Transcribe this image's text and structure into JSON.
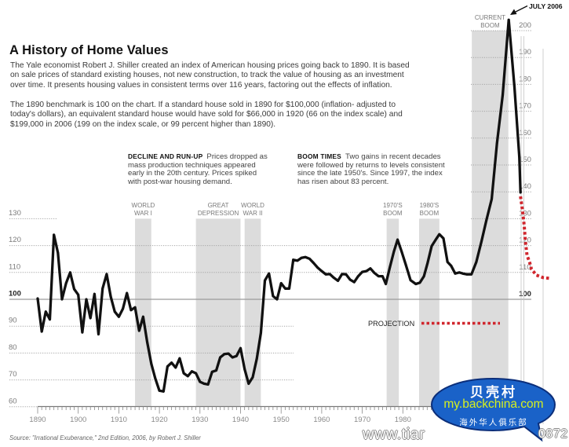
{
  "header": {
    "title": "A History of Home Values",
    "paragraphs": [
      [
        "The Yale economist Robert J. Shiller created an index of American housing prices going back to 1890. It is based",
        "on sale prices of standard existing houses, not new construction, to track the value of housing as an investment",
        "over time. It presents housing values in consistent terms over 116 years, factoring out the effects of inflation."
      ],
      [
        "The 1890 benchmark is 100 on the chart. If a standard house sold in 1890 for $100,000 (inflation- adjusted to",
        "today's dollars), an equivalent standard house would have sold for $66,000 in 1920 (66 on the index scale) and",
        "$199,000 in 2006 (199 on the index scale, or 99 percent higher than 1890)."
      ]
    ]
  },
  "annotations": [
    {
      "label": "DECLINE AND RUN-UP",
      "lines": [
        "Prices dropped as",
        "mass production techniques appeared",
        "early in the 20th century. Prices spiked",
        "with post-war housing demand."
      ]
    },
    {
      "label": "BOOM TIMES",
      "lines": [
        "Two gains in recent decades",
        "were followed by returns to levels consistent",
        "since the late 1950's. Since 1997, the index",
        "has risen about 83 percent."
      ]
    }
  ],
  "source": "Source: \"Irrational Exuberance,\" 2nd Edition, 2006, by Robert J. Shiller",
  "chart_data": {
    "type": "line",
    "title": "A History of Home Values",
    "xlabel": "",
    "ylabel": "",
    "ylim_left": [
      60,
      130
    ],
    "ylim_right": [
      100,
      200
    ],
    "grid": true,
    "x_ticks": [
      "1890",
      "1900",
      "1910",
      "1920",
      "1930",
      "1940",
      "1950",
      "1960",
      "1970",
      "1980"
    ],
    "y_ticks_left": [
      "130",
      "120",
      "110",
      "100",
      "90",
      "80",
      "70",
      "60"
    ],
    "y_ticks_right": [
      "200",
      "190",
      "180",
      "170",
      "160",
      "150",
      "140",
      "130",
      "120",
      "110",
      "100"
    ],
    "peak_annotation": "JULY 2006",
    "legend": {
      "projection_label": "PROJECTION",
      "placement": "lower-right"
    },
    "colors": {
      "line": "#111111",
      "projection": "#d0262d",
      "band": "#dcdcdc"
    },
    "bands": [
      {
        "label_lines": [
          "WORLD",
          "WAR I"
        ],
        "start": 1914,
        "end": 1918
      },
      {
        "label_lines": [
          "GREAT",
          "DEPRESSION"
        ],
        "start": 1929,
        "end": 1940
      },
      {
        "label_lines": [
          "WORLD",
          "WAR II"
        ],
        "start": 1941,
        "end": 1945
      },
      {
        "label_lines": [
          "1970'S",
          "BOOM"
        ],
        "start": 1976,
        "end": 1979
      },
      {
        "label_lines": [
          "1980'S",
          "BOOM"
        ],
        "start": 1984,
        "end": 1989
      },
      {
        "label_lines": [
          "CURRENT",
          "BOOM"
        ],
        "start": 1997,
        "end": 2006
      }
    ],
    "series": [
      {
        "name": "Home value index",
        "points": [
          [
            1890,
            100.3
          ],
          [
            1891,
            88
          ],
          [
            1892,
            95.4
          ],
          [
            1893,
            92.5
          ],
          [
            1894,
            124
          ],
          [
            1895,
            117.3
          ],
          [
            1896,
            100
          ],
          [
            1897,
            106
          ],
          [
            1898,
            110
          ],
          [
            1899,
            103.8
          ],
          [
            1900,
            101.7
          ],
          [
            1901,
            87.7
          ],
          [
            1902,
            100
          ],
          [
            1903,
            93
          ],
          [
            1904,
            102
          ],
          [
            1905,
            87
          ],
          [
            1906,
            104
          ],
          [
            1907,
            109.4
          ],
          [
            1908,
            101
          ],
          [
            1909,
            95.4
          ],
          [
            1910,
            93.5
          ],
          [
            1911,
            96.5
          ],
          [
            1912,
            102.3
          ],
          [
            1913,
            96
          ],
          [
            1914,
            97
          ],
          [
            1915,
            88.3
          ],
          [
            1916,
            93.5
          ],
          [
            1917,
            84
          ],
          [
            1918,
            76
          ],
          [
            1919,
            70.5
          ],
          [
            1920,
            66
          ],
          [
            1921,
            65.7
          ],
          [
            1922,
            75
          ],
          [
            1923,
            76.4
          ],
          [
            1924,
            74.6
          ],
          [
            1925,
            78
          ],
          [
            1926,
            72.5
          ],
          [
            1927,
            71.4
          ],
          [
            1928,
            73.2
          ],
          [
            1929,
            72.5
          ],
          [
            1930,
            69.3
          ],
          [
            1931,
            68.6
          ],
          [
            1932,
            68.3
          ],
          [
            1933,
            73
          ],
          [
            1934,
            73.5
          ],
          [
            1935,
            78.4
          ],
          [
            1936,
            79.6
          ],
          [
            1937,
            79.8
          ],
          [
            1938,
            78.4
          ],
          [
            1939,
            78.9
          ],
          [
            1940,
            81.8
          ],
          [
            1941,
            74
          ],
          [
            1942,
            68.6
          ],
          [
            1943,
            71
          ],
          [
            1944,
            77.9
          ],
          [
            1945,
            87.5
          ],
          [
            1946,
            107
          ],
          [
            1947,
            109.6
          ],
          [
            1948,
            101.2
          ],
          [
            1949,
            100
          ],
          [
            1950,
            106
          ],
          [
            1951,
            104
          ],
          [
            1952,
            104
          ],
          [
            1953,
            114.7
          ],
          [
            1954,
            114.4
          ],
          [
            1955,
            115.4
          ],
          [
            1956,
            115.7
          ],
          [
            1957,
            115.1
          ],
          [
            1958,
            113.5
          ],
          [
            1959,
            111.8
          ],
          [
            1960,
            110.5
          ],
          [
            1961,
            109.3
          ],
          [
            1962,
            109.4
          ],
          [
            1963,
            108
          ],
          [
            1964,
            106.9
          ],
          [
            1965,
            109.4
          ],
          [
            1966,
            109.3
          ],
          [
            1967,
            107.3
          ],
          [
            1968,
            106.4
          ],
          [
            1969,
            108.6
          ],
          [
            1970,
            110.2
          ],
          [
            1971,
            110.5
          ],
          [
            1972,
            111.5
          ],
          [
            1973,
            109.8
          ],
          [
            1974,
            108.6
          ],
          [
            1975,
            108.6
          ],
          [
            1975.8,
            105.7
          ],
          [
            1976.8,
            112
          ],
          [
            1977.8,
            117.8
          ],
          [
            1978.7,
            122.2
          ],
          [
            1979.7,
            117.8
          ],
          [
            1980.7,
            113
          ],
          [
            1981.9,
            107.1
          ],
          [
            1983.2,
            105.7
          ],
          [
            1984.2,
            106.2
          ],
          [
            1985.2,
            108.6
          ],
          [
            1986.1,
            113.5
          ],
          [
            1987.1,
            119.8
          ],
          [
            1988.1,
            122.2
          ],
          [
            1989,
            124.2
          ],
          [
            1990,
            122.7
          ],
          [
            1991,
            113.9
          ],
          [
            1991.9,
            112.5
          ],
          [
            1992.9,
            109.6
          ],
          [
            1993.9,
            110
          ],
          [
            1994.8,
            109.6
          ],
          [
            1995.8,
            109.3
          ],
          [
            1996.9,
            109.3
          ],
          [
            1998.1,
            113.9
          ],
          [
            1999.4,
            121.7
          ],
          [
            2000.6,
            129.5
          ],
          [
            2001.9,
            137.3
          ],
          [
            2003.2,
            158
          ],
          [
            2004.6,
            176
          ],
          [
            2006.1,
            204
          ],
          [
            2007.5,
            179
          ],
          [
            2008.7,
            153
          ],
          [
            2009,
            139.8
          ]
        ]
      },
      {
        "name": "PROJECTION",
        "points": [
          [
            2009,
            138.3
          ],
          [
            2009.5,
            133
          ],
          [
            2009.9,
            127.5
          ],
          [
            2010.2,
            121.7
          ],
          [
            2010.6,
            116.4
          ],
          [
            2011.3,
            113.5
          ],
          [
            2011.7,
            111.2
          ],
          [
            2012.9,
            109
          ],
          [
            2014.5,
            108.1
          ],
          [
            2016.1,
            107.8
          ]
        ]
      }
    ]
  },
  "watermark": {
    "bubble_line1": "贝壳村",
    "bubble_url": "my.backchina.com",
    "bubble_line3": "海外华人俱乐部",
    "overlay_text_start": "www.tiar",
    "overlay_text_end": "0872",
    "bubble_fill": "#1a62c8",
    "bubble_stroke": "#0b2e7a",
    "url_color": "#d6f01e"
  }
}
